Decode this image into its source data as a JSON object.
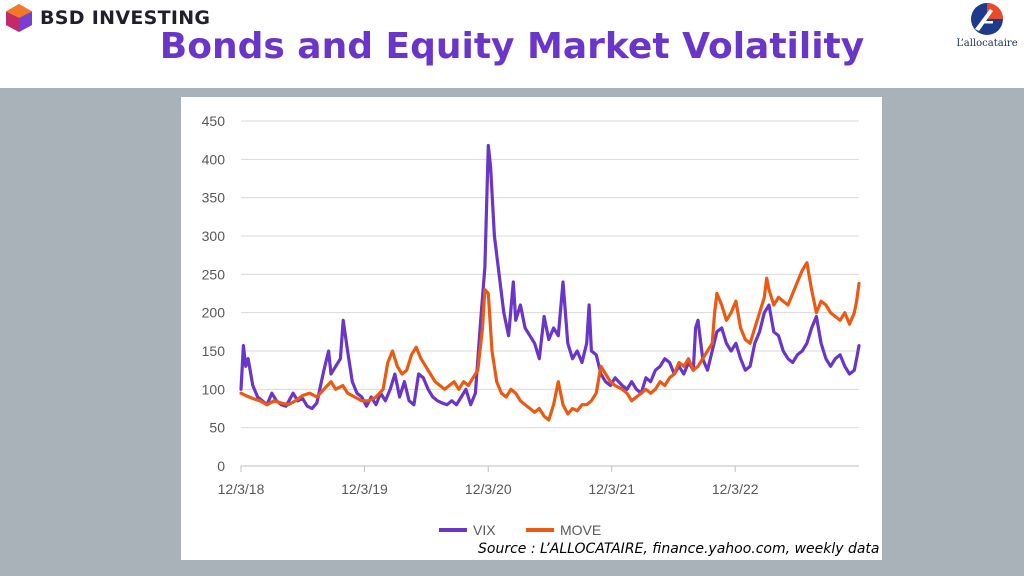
{
  "header": {
    "brand": "BSD INVESTING",
    "title": "Bonds and Equity Market Volatility",
    "partner": "L’allocataire"
  },
  "source": "Source : L’ALLOCATAIRE, finance.yahoo.com, weekly data",
  "colors": {
    "title": "#6a35c9",
    "vix": "#6a35c9",
    "move": "#ea5a12",
    "band": "#a9b1b9"
  },
  "chart_data": {
    "type": "line",
    "title": "",
    "xlabel": "",
    "ylabel": "",
    "ylim": [
      0,
      450
    ],
    "yticks": [
      0,
      50,
      100,
      150,
      200,
      250,
      300,
      350,
      400,
      450
    ],
    "xlim": [
      "2018-12-03",
      "2023-12-04"
    ],
    "xticks": [
      {
        "date": "2018-12-03",
        "label": "12/3/18"
      },
      {
        "date": "2019-12-03",
        "label": "12/3/19"
      },
      {
        "date": "2020-12-03",
        "label": "12/3/20"
      },
      {
        "date": "2021-12-03",
        "label": "12/3/21"
      },
      {
        "date": "2022-12-03",
        "label": "12/3/22"
      }
    ],
    "grid": true,
    "legend_position": "bottom",
    "series": [
      {
        "name": "VIX",
        "color": "#6a35c9",
        "points": [
          [
            "2018-12-03",
            100
          ],
          [
            "2018-12-10",
            157
          ],
          [
            "2018-12-17",
            130
          ],
          [
            "2018-12-24",
            140
          ],
          [
            "2019-01-07",
            105
          ],
          [
            "2019-01-21",
            90
          ],
          [
            "2019-02-04",
            85
          ],
          [
            "2019-02-18",
            80
          ],
          [
            "2019-03-04",
            95
          ],
          [
            "2019-03-18",
            85
          ],
          [
            "2019-04-01",
            80
          ],
          [
            "2019-04-15",
            78
          ],
          [
            "2019-05-06",
            95
          ],
          [
            "2019-05-20",
            85
          ],
          [
            "2019-06-03",
            88
          ],
          [
            "2019-06-17",
            78
          ],
          [
            "2019-07-01",
            75
          ],
          [
            "2019-07-15",
            82
          ],
          [
            "2019-08-05",
            125
          ],
          [
            "2019-08-19",
            150
          ],
          [
            "2019-08-26",
            120
          ],
          [
            "2019-09-09",
            130
          ],
          [
            "2019-09-23",
            140
          ],
          [
            "2019-10-01",
            190
          ],
          [
            "2019-10-14",
            150
          ],
          [
            "2019-10-28",
            110
          ],
          [
            "2019-11-11",
            95
          ],
          [
            "2019-11-25",
            90
          ],
          [
            "2019-12-09",
            78
          ],
          [
            "2019-12-23",
            90
          ],
          [
            "2020-01-06",
            80
          ],
          [
            "2020-01-20",
            95
          ],
          [
            "2020-02-03",
            85
          ],
          [
            "2020-02-17",
            100
          ],
          [
            "2020-03-02",
            120
          ],
          [
            "2020-03-16",
            90
          ],
          [
            "2020-03-30",
            110
          ],
          [
            "2020-04-13",
            85
          ],
          [
            "2020-04-27",
            80
          ],
          [
            "2020-05-11",
            120
          ],
          [
            "2020-05-25",
            115
          ],
          [
            "2020-06-08",
            100
          ],
          [
            "2020-06-22",
            90
          ],
          [
            "2020-07-06",
            85
          ],
          [
            "2020-07-20",
            82
          ],
          [
            "2020-08-03",
            80
          ],
          [
            "2020-08-17",
            85
          ],
          [
            "2020-08-31",
            80
          ],
          [
            "2020-09-14",
            90
          ],
          [
            "2020-09-28",
            100
          ],
          [
            "2020-10-12",
            80
          ],
          [
            "2020-10-26",
            95
          ],
          [
            "2020-11-09",
            180
          ],
          [
            "2020-11-23",
            260
          ],
          [
            "2020-12-03",
            418
          ],
          [
            "2020-12-10",
            390
          ],
          [
            "2020-12-21",
            300
          ],
          [
            "2021-01-04",
            250
          ],
          [
            "2021-01-18",
            200
          ],
          [
            "2021-02-01",
            170
          ],
          [
            "2021-02-15",
            240
          ],
          [
            "2021-02-22",
            190
          ],
          [
            "2021-03-08",
            210
          ],
          [
            "2021-03-22",
            180
          ],
          [
            "2021-04-05",
            170
          ],
          [
            "2021-04-19",
            160
          ],
          [
            "2021-05-03",
            140
          ],
          [
            "2021-05-17",
            195
          ],
          [
            "2021-05-31",
            165
          ],
          [
            "2021-06-14",
            180
          ],
          [
            "2021-06-28",
            170
          ],
          [
            "2021-07-12",
            240
          ],
          [
            "2021-07-26",
            160
          ],
          [
            "2021-08-09",
            140
          ],
          [
            "2021-08-23",
            150
          ],
          [
            "2021-09-06",
            135
          ],
          [
            "2021-09-20",
            160
          ],
          [
            "2021-09-27",
            210
          ],
          [
            "2021-10-04",
            150
          ],
          [
            "2021-10-18",
            145
          ],
          [
            "2021-11-01",
            120
          ],
          [
            "2021-11-15",
            110
          ],
          [
            "2021-11-29",
            105
          ],
          [
            "2021-12-13",
            115
          ],
          [
            "2022-01-03",
            105
          ],
          [
            "2022-01-17",
            100
          ],
          [
            "2022-01-31",
            110
          ],
          [
            "2022-02-14",
            100
          ],
          [
            "2022-02-28",
            95
          ],
          [
            "2022-03-14",
            115
          ],
          [
            "2022-03-28",
            110
          ],
          [
            "2022-04-11",
            125
          ],
          [
            "2022-04-25",
            130
          ],
          [
            "2022-05-09",
            140
          ],
          [
            "2022-05-23",
            135
          ],
          [
            "2022-06-06",
            120
          ],
          [
            "2022-06-20",
            130
          ],
          [
            "2022-07-04",
            120
          ],
          [
            "2022-07-18",
            135
          ],
          [
            "2022-08-01",
            125
          ],
          [
            "2022-08-08",
            180
          ],
          [
            "2022-08-15",
            190
          ],
          [
            "2022-08-29",
            140
          ],
          [
            "2022-09-12",
            125
          ],
          [
            "2022-09-26",
            150
          ],
          [
            "2022-10-10",
            175
          ],
          [
            "2022-10-24",
            180
          ],
          [
            "2022-11-07",
            160
          ],
          [
            "2022-11-21",
            150
          ],
          [
            "2022-12-05",
            160
          ],
          [
            "2022-12-19",
            140
          ],
          [
            "2023-01-02",
            125
          ],
          [
            "2023-01-16",
            130
          ],
          [
            "2023-01-30",
            160
          ],
          [
            "2023-02-13",
            175
          ],
          [
            "2023-02-27",
            200
          ],
          [
            "2023-03-13",
            210
          ],
          [
            "2023-03-27",
            175
          ],
          [
            "2023-04-10",
            170
          ],
          [
            "2023-04-24",
            150
          ],
          [
            "2023-05-08",
            140
          ],
          [
            "2023-05-22",
            135
          ],
          [
            "2023-06-05",
            145
          ],
          [
            "2023-06-19",
            150
          ],
          [
            "2023-07-03",
            160
          ],
          [
            "2023-07-17",
            180
          ],
          [
            "2023-07-31",
            195
          ],
          [
            "2023-08-14",
            160
          ],
          [
            "2023-08-28",
            140
          ],
          [
            "2023-09-11",
            130
          ],
          [
            "2023-09-25",
            140
          ],
          [
            "2023-10-09",
            145
          ],
          [
            "2023-10-23",
            130
          ],
          [
            "2023-11-06",
            120
          ],
          [
            "2023-11-20",
            125
          ],
          [
            "2023-11-27",
            140
          ],
          [
            "2023-12-04",
            157
          ]
        ]
      },
      {
        "name": "MOVE",
        "color": "#ea5a12",
        "points": [
          [
            "2018-12-03",
            95
          ],
          [
            "2018-12-17",
            92
          ],
          [
            "2019-01-07",
            88
          ],
          [
            "2019-01-28",
            85
          ],
          [
            "2019-02-18",
            80
          ],
          [
            "2019-03-11",
            85
          ],
          [
            "2019-04-01",
            82
          ],
          [
            "2019-04-22",
            80
          ],
          [
            "2019-05-13",
            85
          ],
          [
            "2019-06-03",
            92
          ],
          [
            "2019-06-24",
            95
          ],
          [
            "2019-07-15",
            90
          ],
          [
            "2019-08-05",
            100
          ],
          [
            "2019-08-26",
            110
          ],
          [
            "2019-09-09",
            100
          ],
          [
            "2019-09-30",
            105
          ],
          [
            "2019-10-14",
            95
          ],
          [
            "2019-11-04",
            90
          ],
          [
            "2019-11-25",
            85
          ],
          [
            "2019-12-16",
            85
          ],
          [
            "2020-01-06",
            90
          ],
          [
            "2020-01-27",
            100
          ],
          [
            "2020-02-10",
            135
          ],
          [
            "2020-02-24",
            150
          ],
          [
            "2020-03-09",
            130
          ],
          [
            "2020-03-23",
            120
          ],
          [
            "2020-04-06",
            125
          ],
          [
            "2020-04-20",
            145
          ],
          [
            "2020-05-04",
            155
          ],
          [
            "2020-05-18",
            140
          ],
          [
            "2020-06-01",
            130
          ],
          [
            "2020-06-15",
            120
          ],
          [
            "2020-06-29",
            110
          ],
          [
            "2020-07-13",
            105
          ],
          [
            "2020-07-27",
            100
          ],
          [
            "2020-08-10",
            105
          ],
          [
            "2020-08-24",
            110
          ],
          [
            "2020-09-07",
            100
          ],
          [
            "2020-09-21",
            110
          ],
          [
            "2020-10-05",
            105
          ],
          [
            "2020-10-19",
            115
          ],
          [
            "2020-11-02",
            125
          ],
          [
            "2020-11-16",
            180
          ],
          [
            "2020-11-23",
            230
          ],
          [
            "2020-12-03",
            225
          ],
          [
            "2020-12-14",
            150
          ],
          [
            "2020-12-28",
            110
          ],
          [
            "2021-01-11",
            95
          ],
          [
            "2021-01-25",
            90
          ],
          [
            "2021-02-08",
            100
          ],
          [
            "2021-02-22",
            95
          ],
          [
            "2021-03-08",
            85
          ],
          [
            "2021-03-22",
            80
          ],
          [
            "2021-04-05",
            75
          ],
          [
            "2021-04-19",
            70
          ],
          [
            "2021-05-03",
            75
          ],
          [
            "2021-05-17",
            65
          ],
          [
            "2021-05-31",
            60
          ],
          [
            "2021-06-14",
            80
          ],
          [
            "2021-06-28",
            110
          ],
          [
            "2021-07-12",
            80
          ],
          [
            "2021-07-26",
            68
          ],
          [
            "2021-08-09",
            75
          ],
          [
            "2021-08-23",
            72
          ],
          [
            "2021-09-06",
            80
          ],
          [
            "2021-09-20",
            80
          ],
          [
            "2021-10-04",
            85
          ],
          [
            "2021-10-18",
            95
          ],
          [
            "2021-11-01",
            130
          ],
          [
            "2021-11-15",
            120
          ],
          [
            "2021-11-29",
            110
          ],
          [
            "2021-12-13",
            105
          ],
          [
            "2022-01-03",
            100
          ],
          [
            "2022-01-17",
            95
          ],
          [
            "2022-01-31",
            85
          ],
          [
            "2022-02-14",
            90
          ],
          [
            "2022-02-28",
            95
          ],
          [
            "2022-03-14",
            100
          ],
          [
            "2022-03-28",
            95
          ],
          [
            "2022-04-11",
            100
          ],
          [
            "2022-04-25",
            110
          ],
          [
            "2022-05-09",
            105
          ],
          [
            "2022-05-23",
            115
          ],
          [
            "2022-06-06",
            120
          ],
          [
            "2022-06-20",
            135
          ],
          [
            "2022-07-04",
            130
          ],
          [
            "2022-07-18",
            140
          ],
          [
            "2022-08-01",
            125
          ],
          [
            "2022-08-15",
            130
          ],
          [
            "2022-08-29",
            140
          ],
          [
            "2022-09-12",
            150
          ],
          [
            "2022-09-26",
            160
          ],
          [
            "2022-10-03",
            200
          ],
          [
            "2022-10-10",
            225
          ],
          [
            "2022-10-24",
            210
          ],
          [
            "2022-11-07",
            190
          ],
          [
            "2022-11-21",
            200
          ],
          [
            "2022-12-05",
            215
          ],
          [
            "2022-12-19",
            180
          ],
          [
            "2023-01-02",
            165
          ],
          [
            "2023-01-16",
            160
          ],
          [
            "2023-01-30",
            180
          ],
          [
            "2023-02-13",
            200
          ],
          [
            "2023-02-27",
            220
          ],
          [
            "2023-03-06",
            245
          ],
          [
            "2023-03-13",
            230
          ],
          [
            "2023-03-27",
            210
          ],
          [
            "2023-04-10",
            220
          ],
          [
            "2023-04-24",
            215
          ],
          [
            "2023-05-08",
            210
          ],
          [
            "2023-05-22",
            225
          ],
          [
            "2023-06-05",
            240
          ],
          [
            "2023-06-19",
            255
          ],
          [
            "2023-07-03",
            265
          ],
          [
            "2023-07-17",
            230
          ],
          [
            "2023-07-31",
            200
          ],
          [
            "2023-08-14",
            215
          ],
          [
            "2023-08-28",
            210
          ],
          [
            "2023-09-11",
            200
          ],
          [
            "2023-09-25",
            195
          ],
          [
            "2023-10-09",
            190
          ],
          [
            "2023-10-23",
            200
          ],
          [
            "2023-11-06",
            185
          ],
          [
            "2023-11-20",
            200
          ],
          [
            "2023-11-27",
            215
          ],
          [
            "2023-12-04",
            238
          ]
        ]
      }
    ]
  }
}
